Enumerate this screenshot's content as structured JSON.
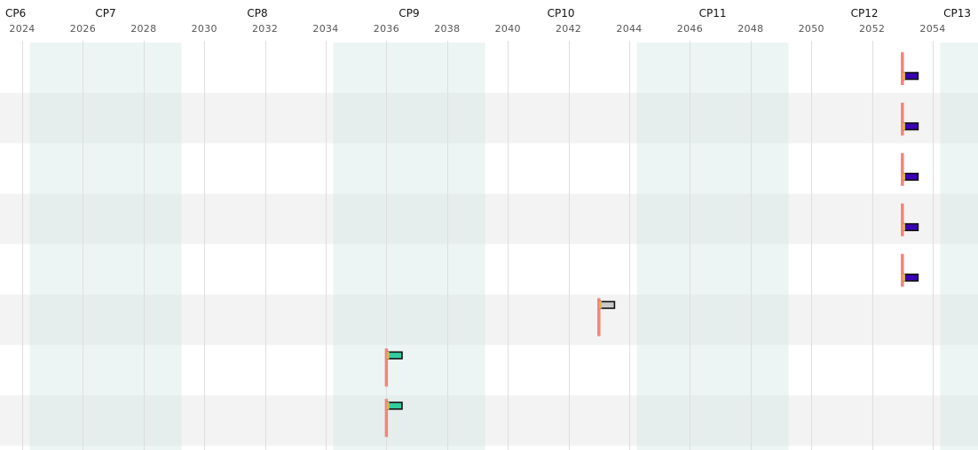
{
  "chart_data": {
    "type": "gantt",
    "x_axis": {
      "unit": "year",
      "range": [
        2023.55,
        2055.3
      ],
      "ticks": [
        2024,
        2026,
        2028,
        2030,
        2032,
        2034,
        2036,
        2038,
        2040,
        2042,
        2044,
        2046,
        2048,
        2050,
        2052,
        2054
      ],
      "tick_labels": [
        "2024",
        "2026",
        "2028",
        "2030",
        "2032",
        "2034",
        "2036",
        "2038",
        "2040",
        "2042",
        "2044",
        "2046",
        "2048",
        "2050",
        "2052",
        "2054"
      ],
      "gridlines": true
    },
    "control_periods": [
      {
        "label": "CP6",
        "start": 2019.25,
        "end": 2024.25,
        "shaded": false
      },
      {
        "label": "CP7",
        "start": 2024.25,
        "end": 2029.25,
        "shaded": true
      },
      {
        "label": "CP8",
        "start": 2029.25,
        "end": 2034.25,
        "shaded": false
      },
      {
        "label": "CP9",
        "start": 2034.25,
        "end": 2039.25,
        "shaded": true
      },
      {
        "label": "CP10",
        "start": 2039.25,
        "end": 2044.25,
        "shaded": false
      },
      {
        "label": "CP11",
        "start": 2044.25,
        "end": 2049.25,
        "shaded": true
      },
      {
        "label": "CP12",
        "start": 2049.25,
        "end": 2054.25,
        "shaded": false
      },
      {
        "label": "CP13",
        "start": 2054.25,
        "end": 2059.25,
        "shaded": true
      }
    ],
    "rows": [
      {
        "marker_year": 2053.0,
        "marker_span": "lower",
        "bar_start": 2053.0,
        "bar_end": 2053.5,
        "bar_color": "#3a00b8"
      },
      {
        "marker_year": 2053.0,
        "marker_span": "lower",
        "bar_start": 2053.0,
        "bar_end": 2053.5,
        "bar_color": "#3a00b8"
      },
      {
        "marker_year": 2053.0,
        "marker_span": "lower",
        "bar_start": 2053.0,
        "bar_end": 2053.5,
        "bar_color": "#3a00b8"
      },
      {
        "marker_year": 2053.0,
        "marker_span": "lower",
        "bar_start": 2053.0,
        "bar_end": 2053.5,
        "bar_color": "#3a00b8"
      },
      {
        "marker_year": 2053.0,
        "marker_span": "lower",
        "bar_start": 2053.0,
        "bar_end": 2053.5,
        "bar_color": "#3a00b8"
      },
      {
        "marker_year": 2043.0,
        "marker_span": "upper",
        "bar_start": 2043.0,
        "bar_end": 2043.5,
        "bar_color": "#c9c9c9"
      },
      {
        "marker_year": 2036.0,
        "marker_span": "upper",
        "bar_start": 2036.0,
        "bar_end": 2036.5,
        "bar_color": "#33cc9f"
      },
      {
        "marker_year": 2036.0,
        "marker_span": "upper",
        "bar_start": 2036.0,
        "bar_end": 2036.5,
        "bar_color": "#33cc9f"
      }
    ],
    "colors": {
      "row_band": "#f3f3f3",
      "period_shade": "#cfe6e3",
      "gridline": "#dedede",
      "marker": "#f4847a",
      "bar_start_tick": "#e2b64a",
      "bar_outline": "#111111"
    }
  }
}
